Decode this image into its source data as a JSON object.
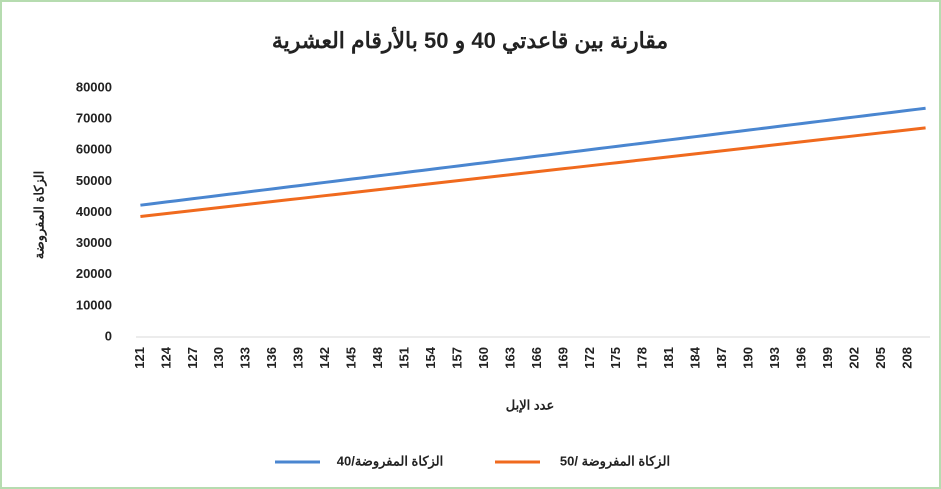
{
  "chart_data": {
    "type": "line",
    "title": "مقارنة بين قاعدتي 40 و 50 بالأرقام العشرية",
    "x_label": "عدد الإبل",
    "y_label": "الزكاة المفروضة",
    "categories": [
      121,
      null,
      null,
      124,
      null,
      null,
      127,
      null,
      null,
      130,
      null,
      null,
      133,
      null,
      null,
      136,
      null,
      null,
      139,
      null,
      null,
      142,
      null,
      null,
      145,
      null,
      null,
      148,
      null,
      null,
      151,
      null,
      null,
      154,
      null,
      null,
      157,
      null,
      null,
      160,
      null,
      null,
      163,
      null,
      null,
      166,
      null,
      null,
      169,
      null,
      null,
      172,
      null,
      null,
      175,
      null,
      null,
      178,
      null,
      null,
      181,
      null,
      null,
      184,
      null,
      null,
      187,
      null,
      null,
      190,
      null,
      null,
      193,
      null,
      null,
      196,
      null,
      null,
      199,
      null,
      null,
      202,
      null,
      null,
      205,
      null,
      null,
      208,
      null,
      null
    ],
    "series": [
      {
        "name": "الزكاة المفروضة/40",
        "color": "#4a86d0",
        "values": [
          42350,
          42700,
          43050,
          43400,
          43750,
          44100,
          44450,
          44800,
          45150,
          45500,
          45850,
          46200,
          46550,
          46900,
          47250,
          47600,
          47950,
          48300,
          48650,
          49000,
          49350,
          49700,
          50050,
          50400,
          50750,
          51100,
          51450,
          51800,
          52150,
          52500,
          52850,
          53200,
          53550,
          53900,
          54250,
          54600,
          54950,
          55300,
          55650,
          56000,
          56350,
          56700,
          57050,
          57400,
          57750,
          58100,
          58450,
          58800,
          59150,
          59500,
          59850,
          60200,
          60550,
          60900,
          61250,
          61600,
          61950,
          62300,
          62650,
          63000,
          63350,
          63700,
          64050,
          64400,
          64750,
          65100,
          65450,
          65800,
          66150,
          66500,
          66850,
          67200,
          67550,
          67900,
          68250,
          68600,
          68950,
          69300,
          69650,
          70000,
          70350,
          70700,
          71050,
          71400,
          71750,
          72100,
          72450,
          72800,
          73150,
          73500
        ]
      },
      {
        "name": "الزكاة المفروضة /50",
        "color": "#f06a1e",
        "values": [
          38720,
          39040,
          39360,
          39680,
          40000,
          40320,
          40640,
          40960,
          41280,
          41600,
          41920,
          42240,
          42560,
          42880,
          43200,
          43520,
          43840,
          44160,
          44480,
          44800,
          45120,
          45440,
          45760,
          46080,
          46400,
          46720,
          47040,
          47360,
          47680,
          48000,
          48320,
          48640,
          48960,
          49280,
          49600,
          49920,
          50240,
          50560,
          50880,
          51200,
          51520,
          51840,
          52160,
          52480,
          52800,
          53120,
          53440,
          53760,
          54080,
          54400,
          54720,
          55040,
          55360,
          55680,
          56000,
          56320,
          56640,
          56960,
          57280,
          57600,
          57920,
          58240,
          58560,
          58880,
          59200,
          59520,
          59840,
          60160,
          60480,
          60800,
          61120,
          61440,
          61760,
          62080,
          62400,
          62720,
          63040,
          63360,
          63680,
          64000,
          64320,
          64640,
          64960,
          65280,
          65600,
          65920,
          66240,
          66560,
          66880,
          67200
        ]
      }
    ],
    "ylim": [
      0,
      80000
    ],
    "yticks": [
      0,
      10000,
      20000,
      30000,
      40000,
      50000,
      60000,
      70000,
      80000
    ],
    "legend": "bottom"
  }
}
